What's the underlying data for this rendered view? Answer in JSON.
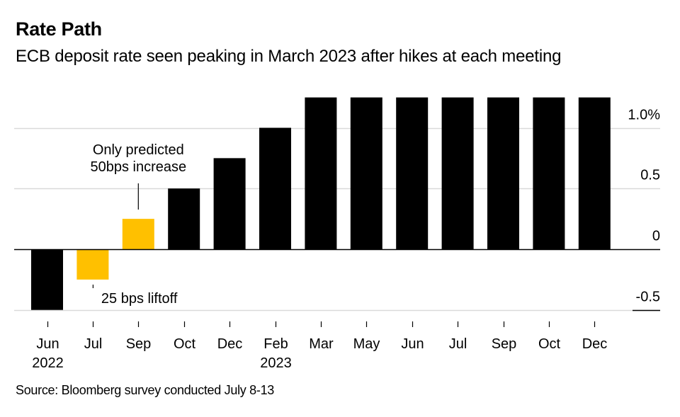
{
  "header": {
    "title": "Rate Path",
    "subtitle": "ECB deposit rate seen peaking in March 2023 after hikes at each meeting"
  },
  "footer": {
    "source": "Source: Bloomberg survey conducted July 8-13"
  },
  "colors": {
    "bar_default": "#000000",
    "bar_highlight": "#FFC000",
    "gridline": "#d9d9d9",
    "zero_line": "#000000"
  },
  "chart_data": {
    "type": "bar",
    "title": "Rate Path",
    "subtitle": "ECB deposit rate seen peaking in March 2023 after hikes at each meeting",
    "xlabel": "",
    "ylabel": "",
    "ylim": [
      -0.5,
      1.25
    ],
    "grid": true,
    "y_axis_position": "right",
    "y_ticks": [
      {
        "value": 1.0,
        "label": "1.0%"
      },
      {
        "value": 0.5,
        "label": "0.5"
      },
      {
        "value": 0,
        "label": "0"
      },
      {
        "value": -0.5,
        "label": "-0.5"
      }
    ],
    "categories": [
      "Jun",
      "Jul",
      "Sep",
      "Oct",
      "Dec",
      "Feb",
      "Mar",
      "May",
      "Jun",
      "Jul",
      "Sep",
      "Oct",
      "Dec"
    ],
    "category_sublabels": [
      "2022",
      "",
      "",
      "",
      "",
      "2023",
      "",
      "",
      "",
      "",
      "",
      "",
      ""
    ],
    "values": [
      -0.5,
      -0.25,
      0.25,
      0.5,
      0.75,
      1.0,
      1.25,
      1.25,
      1.25,
      1.25,
      1.25,
      1.25,
      1.25
    ],
    "highlight": [
      false,
      true,
      true,
      false,
      false,
      false,
      false,
      false,
      false,
      false,
      false,
      false,
      false
    ],
    "annotations": [
      {
        "category_index": 2,
        "lines": [
          "Only predicted",
          "50bps increase"
        ],
        "position": "above"
      },
      {
        "category_index": 1,
        "lines": [
          "25 bps liftoff"
        ],
        "position": "below"
      }
    ],
    "source": "Source: Bloomberg survey conducted July 8-13"
  }
}
